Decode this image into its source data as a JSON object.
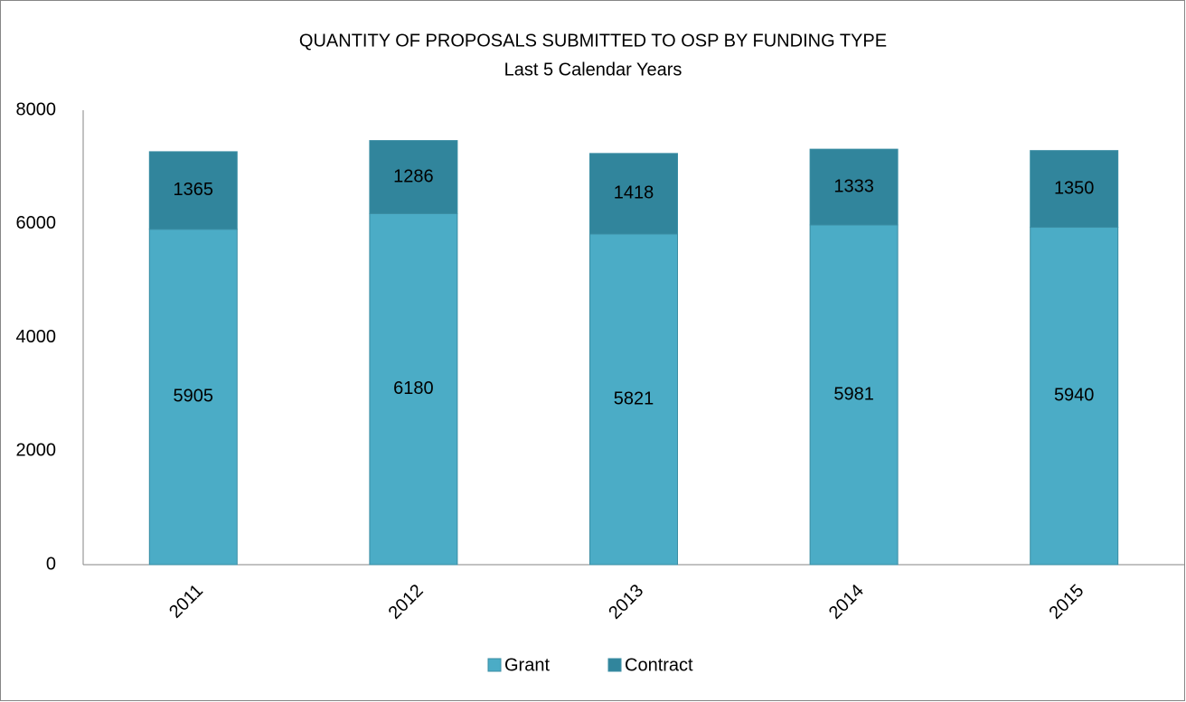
{
  "chart_data": {
    "type": "stacked_bar",
    "title": "QUANTITY OF PROPOSALS SUBMITTED TO OSP BY FUNDING TYPE",
    "subtitle": "Last 5 Calendar Years",
    "categories": [
      "2011",
      "2012",
      "2013",
      "2014",
      "2015"
    ],
    "series": [
      {
        "name": "Grant",
        "color": "#4bacc6",
        "values": [
          5905,
          6180,
          5821,
          5981,
          5940
        ]
      },
      {
        "name": "Contract",
        "color": "#31859c",
        "values": [
          1365,
          1286,
          1418,
          1333,
          1350
        ]
      }
    ],
    "ylim": [
      0,
      8000
    ],
    "yticks": [
      0,
      2000,
      4000,
      6000,
      8000
    ],
    "grid": false,
    "legend": "bottom"
  }
}
